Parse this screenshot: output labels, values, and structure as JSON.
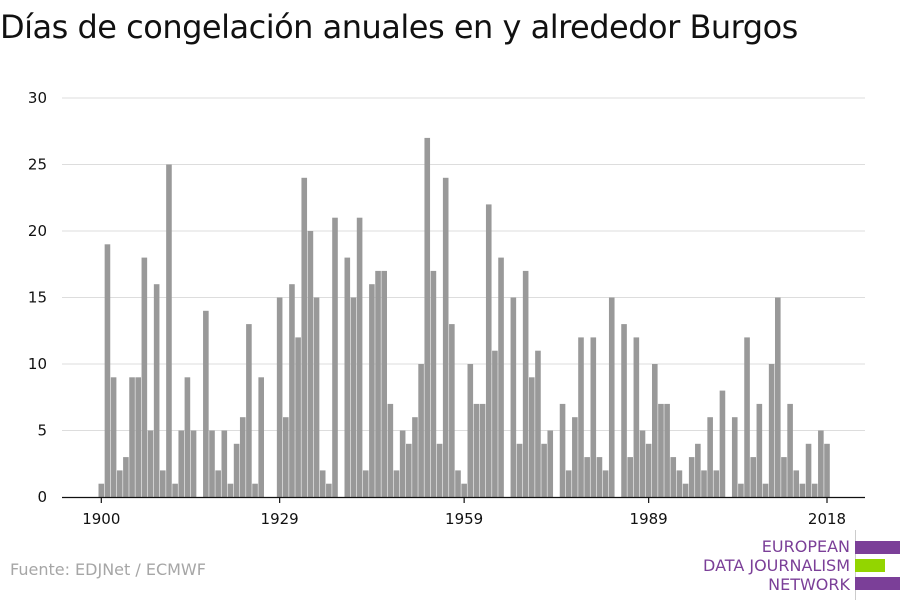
{
  "chart_data": {
    "type": "bar",
    "title": "Días de congelación anuales en y alrededor Burgos",
    "xlabel": "",
    "ylabel": "",
    "ylim": [
      0,
      30
    ],
    "y_ticks": [
      0,
      5,
      10,
      15,
      20,
      25,
      30
    ],
    "x_ticks": [
      1900,
      1929,
      1959,
      1989,
      2018
    ],
    "grid": true,
    "x": [
      1900,
      1901,
      1902,
      1903,
      1904,
      1905,
      1906,
      1907,
      1908,
      1909,
      1910,
      1911,
      1912,
      1913,
      1914,
      1915,
      1916,
      1917,
      1918,
      1919,
      1920,
      1921,
      1922,
      1923,
      1924,
      1925,
      1926,
      1927,
      1928,
      1929,
      1930,
      1931,
      1932,
      1933,
      1934,
      1935,
      1936,
      1937,
      1938,
      1939,
      1940,
      1941,
      1942,
      1943,
      1944,
      1945,
      1946,
      1947,
      1948,
      1949,
      1950,
      1951,
      1952,
      1953,
      1954,
      1955,
      1956,
      1957,
      1958,
      1959,
      1960,
      1961,
      1962,
      1963,
      1964,
      1965,
      1966,
      1967,
      1968,
      1969,
      1970,
      1971,
      1972,
      1973,
      1974,
      1975,
      1976,
      1977,
      1978,
      1979,
      1980,
      1981,
      1982,
      1983,
      1984,
      1985,
      1986,
      1987,
      1988,
      1989,
      1990,
      1991,
      1992,
      1993,
      1994,
      1995,
      1996,
      1997,
      1998,
      1999,
      2000,
      2001,
      2002,
      2003,
      2004,
      2005,
      2006,
      2007,
      2008,
      2009,
      2010,
      2011,
      2012,
      2013,
      2014,
      2015,
      2016,
      2017,
      2018,
      2019
    ],
    "values": [
      1,
      19,
      9,
      2,
      3,
      9,
      9,
      18,
      5,
      16,
      2,
      25,
      1,
      5,
      9,
      5,
      0,
      14,
      5,
      2,
      5,
      1,
      4,
      6,
      13,
      1,
      9,
      0,
      0,
      15,
      6,
      16,
      12,
      24,
      20,
      15,
      2,
      1,
      21,
      0,
      18,
      15,
      21,
      2,
      16,
      17,
      17,
      7,
      2,
      5,
      4,
      6,
      10,
      27,
      17,
      4,
      24,
      13,
      2,
      1,
      10,
      7,
      7,
      22,
      11,
      18,
      0,
      15,
      4,
      17,
      9,
      11,
      4,
      5,
      0,
      7,
      2,
      6,
      12,
      3,
      12,
      3,
      2,
      15,
      0,
      13,
      3,
      12,
      5,
      4,
      10,
      7,
      7,
      3,
      2,
      1,
      3,
      4,
      2,
      6,
      2,
      8,
      0,
      6,
      1,
      12,
      3,
      7,
      1,
      10,
      15,
      3,
      7,
      2,
      1,
      4,
      1,
      5,
      4,
      0
    ]
  },
  "footer": {
    "source": "Fuente: EDJNet / ECMWF",
    "logo_lines": [
      "EUROPEAN",
      "DATA JOURNALISM",
      "NETWORK"
    ],
    "logo_purple": "#7b3f98",
    "logo_green": "#93d500"
  },
  "colors": {
    "bar": "#999999",
    "grid": "#dddddd",
    "axis": "#111111",
    "text": "#111111"
  }
}
